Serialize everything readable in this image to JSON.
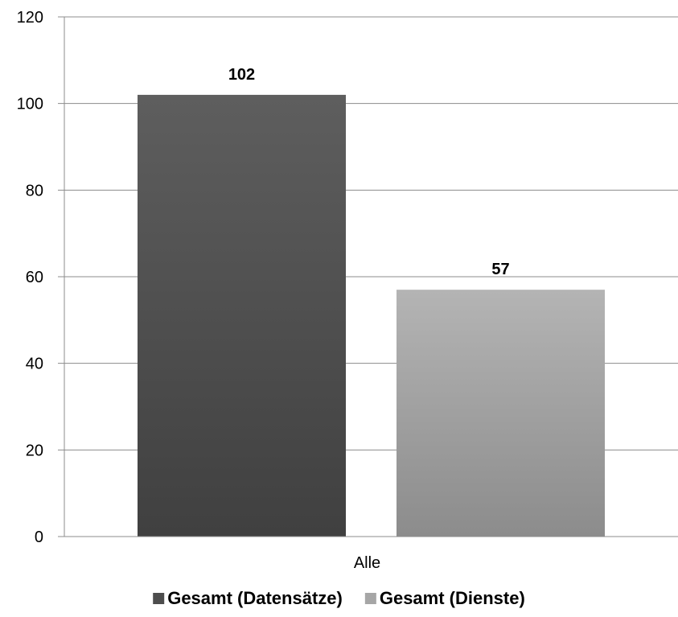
{
  "chart_data": {
    "type": "bar",
    "categories": [
      "Alle"
    ],
    "series": [
      {
        "name": "Gesamt (Datensätze)",
        "values": [
          102
        ],
        "color": "#4d4d4d"
      },
      {
        "name": "Gesamt (Dienste)",
        "values": [
          57
        ],
        "color": "#a6a6a6"
      }
    ],
    "ylim": [
      0,
      120
    ],
    "yticks": [
      0,
      20,
      40,
      60,
      80,
      100,
      120
    ],
    "grid": true,
    "legend_position": "bottom",
    "data_labels": [
      "102",
      "57"
    ]
  }
}
